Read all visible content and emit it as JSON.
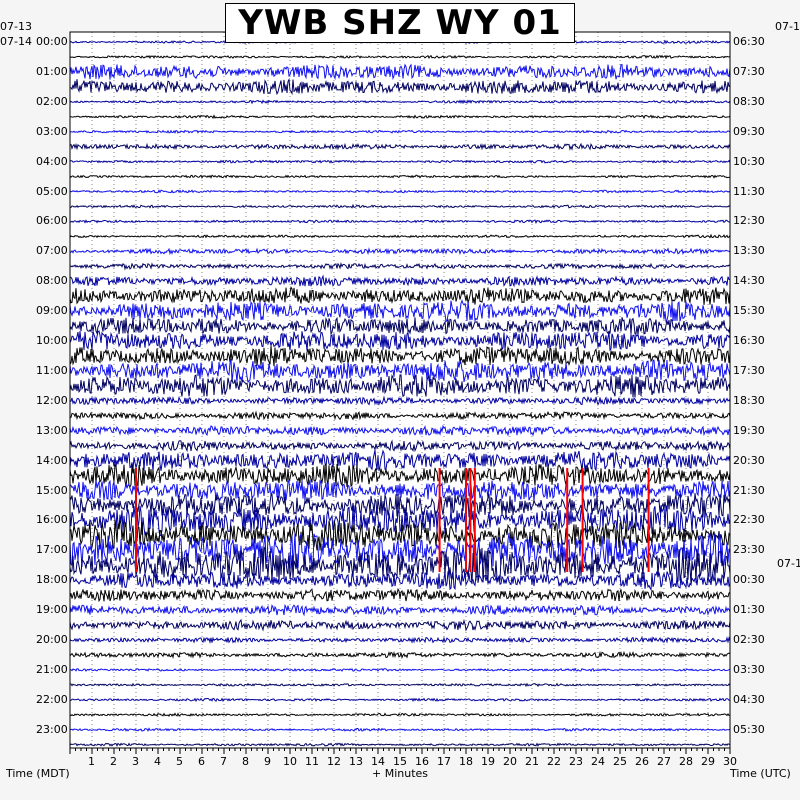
{
  "chart_data": {
    "type": "line",
    "title": "YWB SHZ WY 01",
    "xlabel": "+ Minutes",
    "ylabel_left": "Time (MDT)",
    "ylabel_right": "Time (UTC)",
    "x_range": [
      0,
      30
    ],
    "x_ticks": [
      "1",
      "2",
      "3",
      "4",
      "5",
      "6",
      "7",
      "8",
      "9",
      "10",
      "11",
      "12",
      "13",
      "14",
      "15",
      "16",
      "17",
      "18",
      "19",
      "20",
      "21",
      "22",
      "23",
      "24",
      "25",
      "26",
      "27",
      "28",
      "29",
      "30"
    ],
    "date_left_prev": "07-13",
    "date_left": "07-14",
    "date_right_prev": "07-1",
    "date_right_next": "07-1",
    "left_times": [
      "00:00",
      "01:00",
      "02:00",
      "03:00",
      "04:00",
      "05:00",
      "06:00",
      "07:00",
      "08:00",
      "09:00",
      "10:00",
      "11:00",
      "12:00",
      "13:00",
      "14:00",
      "15:00",
      "16:00",
      "17:00",
      "18:00",
      "19:00",
      "20:00",
      "21:00",
      "22:00",
      "23:00"
    ],
    "right_times": [
      "06:30",
      "07:30",
      "08:30",
      "09:30",
      "10:30",
      "11:30",
      "12:30",
      "13:30",
      "14:30",
      "15:30",
      "16:30",
      "17:30",
      "18:30",
      "19:30",
      "20:30",
      "21:30",
      "22:30",
      "23:30",
      "00:30",
      "01:30",
      "02:30",
      "03:30",
      "04:30",
      "05:30"
    ],
    "trace_colors": [
      "#0000a0",
      "#000000",
      "#1010f0",
      "#000060"
    ],
    "clip_color": "#ff0000",
    "rows_per_hour": 2,
    "row_amplitude_levels": [
      1,
      1,
      6,
      6,
      1,
      1,
      1,
      2,
      1,
      1,
      1,
      1,
      1,
      1,
      2,
      2,
      4,
      7,
      8,
      7,
      8,
      8,
      9,
      9,
      3,
      3,
      4,
      4,
      8,
      9,
      9,
      10,
      12,
      12,
      14,
      14,
      7,
      5,
      4,
      4,
      2,
      2,
      1,
      1,
      1,
      1,
      1,
      1
    ],
    "clip_markers_minutes": [
      3.0,
      16.8,
      18.0,
      18.2,
      18.4,
      22.6,
      23.3,
      26.3
    ]
  }
}
